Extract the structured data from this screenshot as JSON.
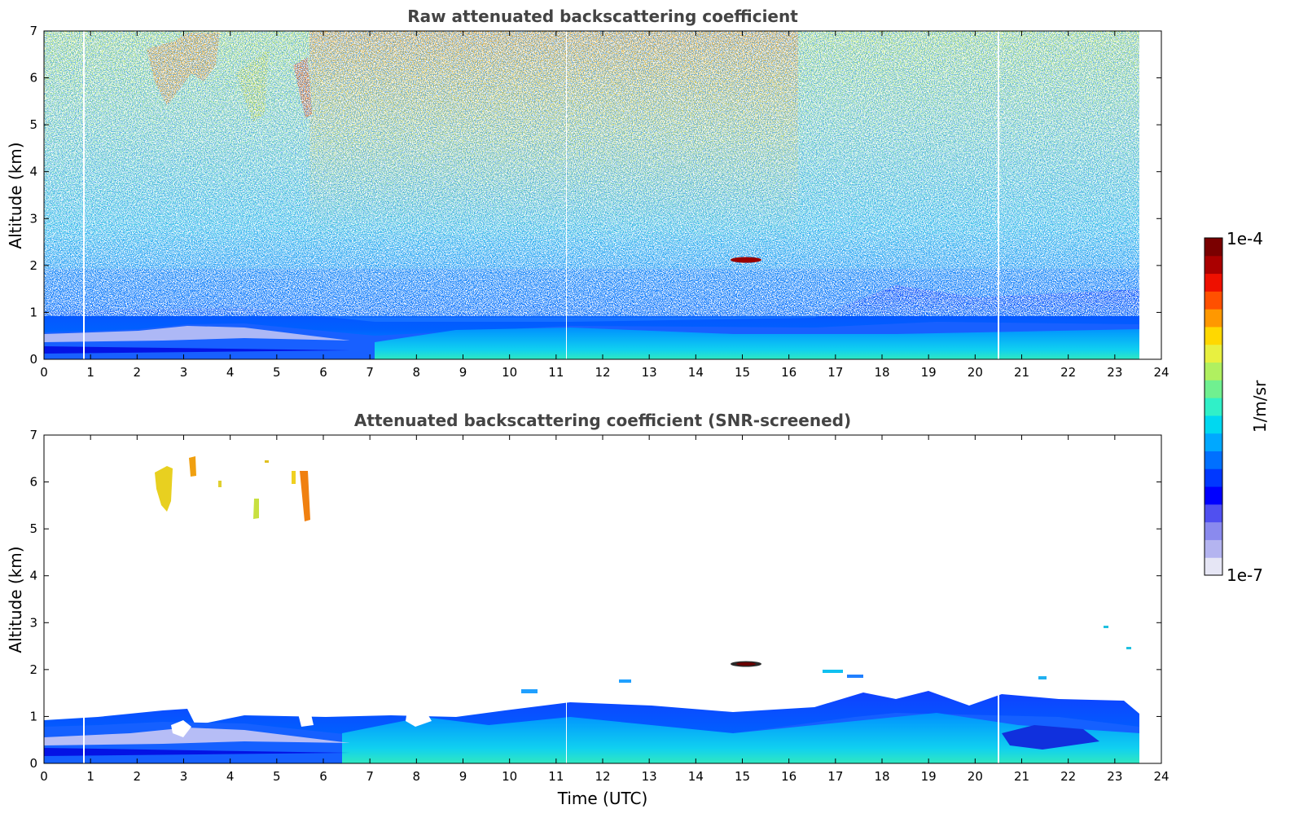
{
  "chart_data": [
    {
      "type": "heatmap",
      "title": "Raw attenuated backscattering coefficient",
      "xlabel": "",
      "ylabel": "Altitude (km)",
      "xlim": [
        0,
        24
      ],
      "ylim": [
        0,
        7
      ],
      "xticks": [
        "0",
        "1",
        "2",
        "3",
        "4",
        "5",
        "6",
        "7",
        "8",
        "9",
        "10",
        "11",
        "12",
        "13",
        "14",
        "15",
        "16",
        "17",
        "18",
        "19",
        "20",
        "21",
        "22",
        "23",
        "24"
      ],
      "yticks": [
        "0",
        "1",
        "2",
        "3",
        "4",
        "5",
        "6",
        "7"
      ],
      "data_end_time": 23.5,
      "data_gaps_time": [
        0.85,
        11.25,
        20.5
      ],
      "features": [
        {
          "name": "boundary layer aerosol",
          "time_range": [
            0,
            23.5
          ],
          "altitude_range": [
            0,
            1.5
          ]
        },
        {
          "name": "cloud layer",
          "time_range": [
            14.8,
            15.4
          ],
          "altitude_range": [
            2.05,
            2.15
          ]
        },
        {
          "name": "cirrus / high aerosol",
          "time_range": [
            2.5,
            5.8
          ],
          "altitude_range": [
            5.2,
            7
          ]
        }
      ]
    },
    {
      "type": "heatmap",
      "title": "Attenuated backscattering coefficient (SNR-screened)",
      "xlabel": "Time (UTC)",
      "ylabel": "Altitude (km)",
      "xlim": [
        0,
        24
      ],
      "ylim": [
        0,
        7
      ],
      "xticks": [
        "0",
        "1",
        "2",
        "3",
        "4",
        "5",
        "6",
        "7",
        "8",
        "9",
        "10",
        "11",
        "12",
        "13",
        "14",
        "15",
        "16",
        "17",
        "18",
        "19",
        "20",
        "21",
        "22",
        "23",
        "24"
      ],
      "yticks": [
        "0",
        "1",
        "2",
        "3",
        "4",
        "5",
        "6",
        "7"
      ],
      "data_end_time": 23.5,
      "data_gaps_time": [
        0.85,
        11.25,
        20.5
      ],
      "features": [
        {
          "name": "boundary layer aerosol",
          "time_range": [
            0,
            23.5
          ],
          "altitude_range": [
            0,
            1.5
          ]
        },
        {
          "name": "cloud layer",
          "time_range": [
            14.8,
            15.4
          ],
          "altitude_range": [
            2.05,
            2.15
          ]
        },
        {
          "name": "cirrus / high aerosol",
          "time_range": [
            2.5,
            5.8
          ],
          "altitude_range": [
            5.2,
            6.7
          ]
        }
      ]
    }
  ],
  "colorbar": {
    "max_label": "1e-4",
    "min_label": "1e-7",
    "unit_label": "1/m/sr",
    "colors": [
      "#e6e6f5",
      "#b4b4f0",
      "#8a8aee",
      "#5050f0",
      "#0000ff",
      "#0038ff",
      "#0070ff",
      "#00a8ff",
      "#00d8f0",
      "#30f0c8",
      "#70f090",
      "#b0f060",
      "#e8f040",
      "#ffd800",
      "#ff9800",
      "#ff5000",
      "#ee1000",
      "#aa0000",
      "#7a0000"
    ]
  }
}
